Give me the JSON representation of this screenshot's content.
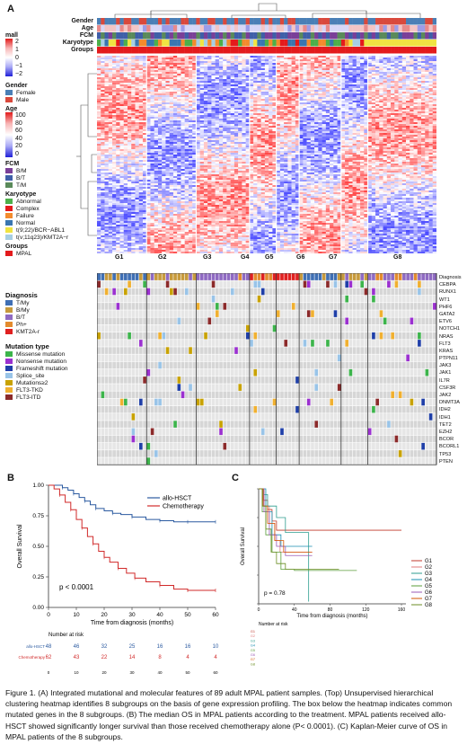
{
  "panelA": {
    "letter": "A",
    "track_labels": [
      "Gender",
      "Age",
      "FCM",
      "Karyotype",
      "Groups"
    ],
    "groups": [
      "G1",
      "G2",
      "G3",
      "G4",
      "G5",
      "G6",
      "G7",
      "G8"
    ],
    "colorbar": {
      "title": "mall",
      "ticks": [
        "2",
        "1",
        "0",
        "−1",
        "−2"
      ]
    },
    "legend": {
      "gender": {
        "title": "Gender",
        "items": [
          {
            "label": "Female",
            "color": "#4a7fb6"
          },
          {
            "label": "Male",
            "color": "#d9493c"
          }
        ]
      },
      "age": {
        "title": "Age",
        "ticks": [
          "100",
          "80",
          "60",
          "40",
          "20",
          "0"
        ]
      },
      "fcm": {
        "title": "FCM",
        "items": [
          {
            "label": "B/M",
            "color": "#7a3f98"
          },
          {
            "label": "B/T",
            "color": "#3f5fa8"
          },
          {
            "label": "T/M",
            "color": "#5a8a5a"
          }
        ]
      },
      "karyotype": {
        "title": "Karyotype",
        "items": [
          {
            "label": "Abnormal",
            "color": "#4daf4a"
          },
          {
            "label": "Complex",
            "color": "#e41a1c"
          },
          {
            "label": "Failure",
            "color": "#f38b2d"
          },
          {
            "label": "Normal",
            "color": "#3a76b0"
          },
          {
            "label": "t(9;22)/BCR−ABL1",
            "color": "#f0e442"
          },
          {
            "label": "t(v;11q23)/KMT2A−r",
            "color": "#a6cee3"
          }
        ]
      },
      "groups": {
        "title": "Groups",
        "items": [
          {
            "label": "MPAL",
            "color": "#e31a1c"
          }
        ]
      }
    },
    "diagnosis": {
      "title": "Diagnosis",
      "items": [
        {
          "label": "T/My",
          "color": "#3f6fb4"
        },
        {
          "label": "B/My",
          "color": "#c79a3c"
        },
        {
          "label": "B/T",
          "color": "#8f6ac2"
        },
        {
          "label": "Ph+",
          "color": "#e38b2d"
        },
        {
          "label": "KMT2A-r",
          "color": "#e02020"
        }
      ]
    },
    "mutation_type": {
      "title": "Mutation type",
      "items": [
        {
          "label": "Missense mutation",
          "color": "#3cb44b"
        },
        {
          "label": "Nonsense mutation",
          "color": "#9b30d0"
        },
        {
          "label": "Frameshift mutation",
          "color": "#1f3fa8"
        },
        {
          "label": "Splice_site",
          "color": "#99c4e8"
        },
        {
          "label": "Mutations≥2",
          "color": "#c8a200"
        },
        {
          "label": "FLT3-TKD",
          "color": "#f0b030"
        },
        {
          "label": "FLT3-ITD",
          "color": "#8b2a2a"
        }
      ]
    },
    "genes": [
      "Diagnosis",
      "CEBPA",
      "RUNX1",
      "WT1",
      "PHF6",
      "GATA2",
      "ETV6",
      "NOTCH1",
      "NRAS",
      "FLT3",
      "KRAS",
      "PTPN11",
      "JAK3",
      "JAK1",
      "IL7R",
      "CSF3R",
      "JAK2",
      "DNMT3A",
      "IDH2",
      "IDH1",
      "TET2",
      "EZH2",
      "BCOR",
      "BCORL1",
      "TP53",
      "PTEN"
    ]
  },
  "panelB": {
    "letter": "B",
    "ylabel": "Overall Survival",
    "xlabel": "Time from diagnosis (months)",
    "yticks": [
      "1.00",
      "0.75",
      "0.50",
      "0.25",
      "0.00"
    ],
    "xticks": [
      "0",
      "10",
      "20",
      "30",
      "40",
      "50",
      "60"
    ],
    "legend": [
      "allo-HSCT",
      "Chemotherapy"
    ],
    "pvalue": "p < 0.0001",
    "risk_title": "Number at risk",
    "risk_rows": [
      {
        "label": "allo-HSCT",
        "values": [
          "48",
          "46",
          "32",
          "25",
          "16",
          "16",
          "10"
        ]
      },
      {
        "label": "Chemotherapy",
        "values": [
          "62",
          "43",
          "22",
          "14",
          "8",
          "4",
          "4"
        ]
      }
    ],
    "risk_xticks": [
      "0",
      "10",
      "20",
      "30",
      "40",
      "50",
      "60"
    ]
  },
  "panelC": {
    "letter": "C",
    "ylabel": "Overall Survival",
    "xlabel": "Time from diagnosis (months)",
    "xticks": [
      "0",
      "40",
      "80",
      "120",
      "160"
    ],
    "legend": [
      "G1",
      "G2",
      "G3",
      "G4",
      "G5",
      "G6",
      "G7",
      "G8"
    ],
    "pvalue": "p = 0.78",
    "risk_title": "Number at risk"
  },
  "caption": "Figure 1. (A) Integrated mutational and molecular features of 89 adult MPAL patient samples. (Top) Unsupervised hierarchical clustering heatmap identifies 8 subgroups on the basis of gene expression profiling. The box below the heatmap indicates common mutated genes in the 8 subgroups. (B) The median OS in MPAL patients according to the treatment. MPAL patients received allo-HSCT showed significantly longer survival than those received chemotherapy alone (P< 0.0001). (C) Kaplan-Meier curve of OS in MPAL patients of the 8 subgroups.",
  "chart_data": [
    {
      "type": "line",
      "title": "",
      "xlabel": "Time from diagnosis (months)",
      "ylabel": "Overall Survival",
      "xlim": [
        0,
        60
      ],
      "ylim": [
        0,
        1
      ],
      "series": [
        {
          "name": "allo-HSCT",
          "x": [
            0,
            3,
            5,
            7,
            9,
            11,
            13,
            15,
            17,
            20,
            23,
            26,
            30,
            35,
            40,
            45,
            50,
            55,
            60
          ],
          "y": [
            1.0,
            1.0,
            0.98,
            0.96,
            0.93,
            0.9,
            0.87,
            0.84,
            0.81,
            0.79,
            0.77,
            0.76,
            0.74,
            0.72,
            0.71,
            0.7,
            0.7,
            0.7,
            0.7
          ]
        },
        {
          "name": "Chemotherapy",
          "x": [
            0,
            2,
            4,
            6,
            8,
            10,
            12,
            14,
            16,
            18,
            20,
            22,
            25,
            28,
            31,
            35,
            40,
            45,
            50,
            55,
            60
          ],
          "y": [
            1.0,
            0.97,
            0.92,
            0.86,
            0.8,
            0.72,
            0.65,
            0.58,
            0.52,
            0.46,
            0.41,
            0.37,
            0.32,
            0.28,
            0.24,
            0.21,
            0.18,
            0.15,
            0.14,
            0.14,
            0.14
          ]
        }
      ]
    },
    {
      "type": "line",
      "title": "",
      "xlabel": "Time from diagnosis (months)",
      "ylabel": "Overall Survival",
      "xlim": [
        0,
        165
      ],
      "ylim": [
        0,
        1
      ],
      "series": [
        {
          "name": "G1",
          "x": [
            0,
            5,
            10,
            15,
            20,
            30,
            60,
            160
          ],
          "y": [
            1.0,
            0.9,
            0.82,
            0.72,
            0.64,
            0.64,
            0.64,
            0.64
          ]
        },
        {
          "name": "G2",
          "x": [
            0,
            6,
            12,
            18,
            24,
            30,
            60
          ],
          "y": [
            1.0,
            0.85,
            0.7,
            0.55,
            0.45,
            0.45,
            0.45
          ]
        },
        {
          "name": "G3",
          "x": [
            0,
            5,
            10,
            20,
            30,
            55,
            56
          ],
          "y": [
            1.0,
            0.95,
            0.85,
            0.75,
            0.62,
            0.62,
            0.02
          ]
        },
        {
          "name": "G4",
          "x": [
            0,
            8,
            15,
            25,
            40,
            60
          ],
          "y": [
            1.0,
            0.8,
            0.6,
            0.5,
            0.5,
            0.5
          ]
        },
        {
          "name": "G5",
          "x": [
            0,
            4,
            8,
            15,
            25,
            40,
            110
          ],
          "y": [
            1.0,
            0.8,
            0.6,
            0.45,
            0.3,
            0.29,
            0.29
          ]
        },
        {
          "name": "G6",
          "x": [
            0,
            6,
            12,
            20,
            30,
            60
          ],
          "y": [
            1.0,
            0.8,
            0.6,
            0.5,
            0.42,
            0.42
          ]
        },
        {
          "name": "G7",
          "x": [
            0,
            5,
            10,
            18,
            28,
            60
          ],
          "y": [
            1.0,
            0.85,
            0.7,
            0.55,
            0.45,
            0.45
          ]
        },
        {
          "name": "G8",
          "x": [
            0,
            4,
            8,
            14,
            20,
            30,
            90
          ],
          "y": [
            1.0,
            0.85,
            0.65,
            0.45,
            0.35,
            0.3,
            0.3
          ]
        }
      ]
    }
  ]
}
